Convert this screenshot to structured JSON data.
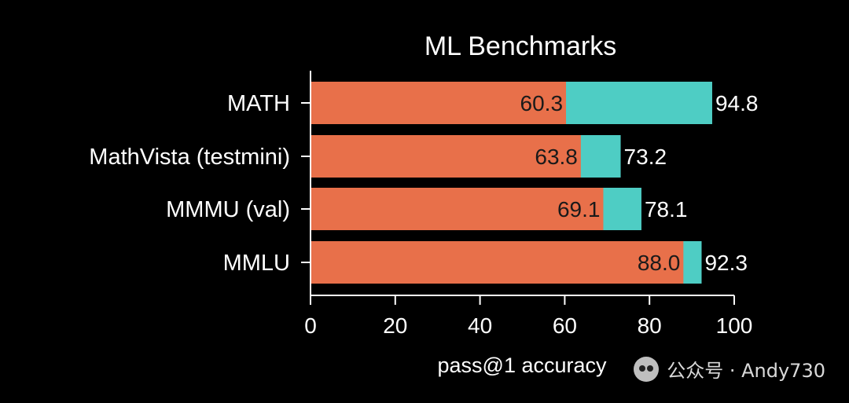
{
  "chart_data": {
    "type": "bar",
    "title": "ML Benchmarks",
    "xlabel": "pass@1 accuracy",
    "ylabel": "",
    "xlim": [
      0,
      100
    ],
    "xticks": [
      0,
      20,
      40,
      60,
      80,
      100
    ],
    "grid": false,
    "orientation": "horizontal",
    "stacked_overlay": true,
    "categories": [
      "MATH",
      "MathVista (testmini)",
      "MMMU (val)",
      "MMLU"
    ],
    "series": [
      {
        "values": [
          60.3,
          63.8,
          69.1,
          88.0
        ],
        "color": "#E8704A"
      },
      {
        "values": [
          94.8,
          73.2,
          78.1,
          92.3
        ],
        "color": "#4ECDC4"
      }
    ]
  },
  "watermark": {
    "text": "公众号 · Andy730",
    "icon": "wechat-icon"
  }
}
